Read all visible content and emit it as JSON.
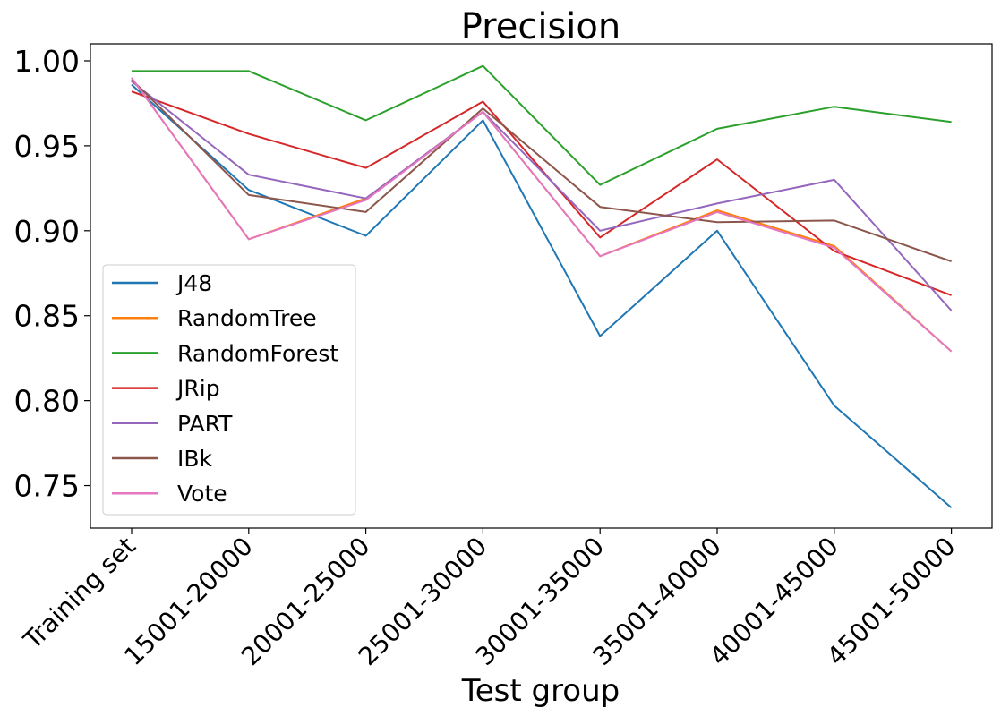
{
  "chart_data": {
    "type": "line",
    "title": "Precision",
    "xlabel": "Test group",
    "ylabel": "",
    "categories": [
      "Training set",
      "15001-20000",
      "20001-25000",
      "25001-30000",
      "30001-35000",
      "35001-40000",
      "40001-45000",
      "45001-50000"
    ],
    "ylim": [
      0.725,
      1.01
    ],
    "yticks": [
      0.75,
      0.8,
      0.85,
      0.9,
      0.95,
      1.0
    ],
    "ytick_labels": [
      "0.75",
      "0.80",
      "0.85",
      "0.90",
      "0.95",
      "1.00"
    ],
    "grid": false,
    "legend_position": "lower-left",
    "series": [
      {
        "name": "J48",
        "color": "#1f77b4",
        "values": [
          0.986,
          0.924,
          0.897,
          0.965,
          0.838,
          0.9,
          0.797,
          0.737
        ]
      },
      {
        "name": "RandomTree",
        "color": "#ff7f0e",
        "values": [
          0.99,
          0.895,
          0.919,
          0.97,
          0.885,
          0.912,
          0.891,
          0.829
        ]
      },
      {
        "name": "RandomForest",
        "color": "#2ca02c",
        "values": [
          0.994,
          0.994,
          0.965,
          0.997,
          0.927,
          0.96,
          0.973,
          0.964
        ]
      },
      {
        "name": "JRip",
        "color": "#d62728",
        "values": [
          0.982,
          0.957,
          0.937,
          0.976,
          0.896,
          0.942,
          0.888,
          0.862
        ]
      },
      {
        "name": "PART",
        "color": "#9467bd",
        "values": [
          0.988,
          0.933,
          0.919,
          0.97,
          0.9,
          0.916,
          0.93,
          0.853
        ]
      },
      {
        "name": "IBk",
        "color": "#8c564b",
        "values": [
          0.989,
          0.921,
          0.911,
          0.972,
          0.914,
          0.905,
          0.906,
          0.882
        ]
      },
      {
        "name": "Vote",
        "color": "#e377c2",
        "values": [
          0.99,
          0.895,
          0.918,
          0.97,
          0.885,
          0.911,
          0.89,
          0.829
        ]
      }
    ]
  }
}
